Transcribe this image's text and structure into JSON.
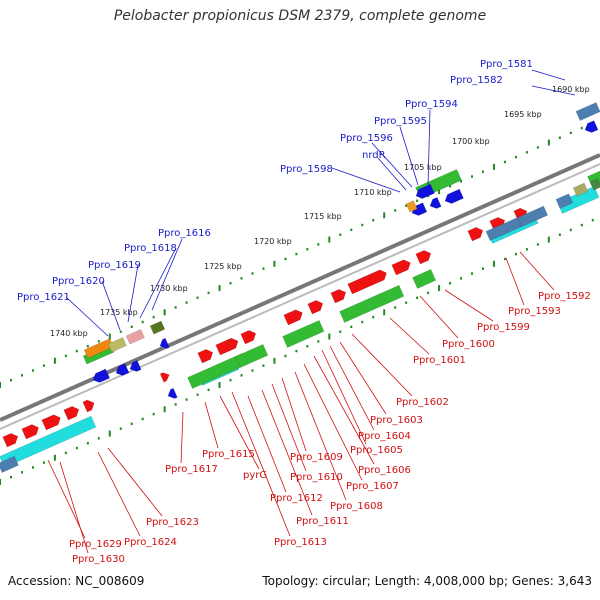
{
  "title": "Pelobacter propionicus DSM 2379, complete genome",
  "footer": {
    "accession": "Accession: NC_008609",
    "topology": "Topology: circular; Length: 4,008,000 bp; Genes: 3,643"
  },
  "scale_labels": [
    "1690 kbp",
    "1695 kbp",
    "1700 kbp",
    "1705 kbp",
    "1710 kbp",
    "1715 kbp",
    "1720 kbp",
    "1725 kbp",
    "1730 kbp",
    "1735 kbp",
    "1740 kbp"
  ],
  "upper_gene_labels": [
    "Ppro_1581",
    "Ppro_1582",
    "Ppro_1594",
    "Ppro_1595",
    "Ppro_1596",
    "nrdR",
    "Ppro_1598",
    "Ppro_1616",
    "Ppro_1618",
    "Ppro_1619",
    "Ppro_1620",
    "Ppro_1621"
  ],
  "lower_gene_labels": [
    "Ppro_1592",
    "Ppro_1593",
    "Ppro_1599",
    "Ppro_1600",
    "Ppro_1601",
    "Ppro_1602",
    "Ppro_1603",
    "Ppro_1604",
    "Ppro_1605",
    "Ppro_1606",
    "Ppro_1607",
    "Ppro_1608",
    "Ppro_1609",
    "Ppro_1610",
    "Ppro_1611",
    "Ppro_1612",
    "Ppro_1613",
    "Ppro_1615",
    "pyrG",
    "Ppro_1617",
    "Ppro_1623",
    "Ppro_1624",
    "Ppro_1629",
    "Ppro_1630"
  ],
  "colors": {
    "upper_label": "#1a1ac8",
    "lower_label": "#d01010",
    "forward_gene": "#ee1111",
    "reverse_gene": "#1111dd",
    "cog_green": "#33bb33",
    "cog_cyan": "#22dddd",
    "backbone": "#777777",
    "tick_green": "#228822"
  }
}
